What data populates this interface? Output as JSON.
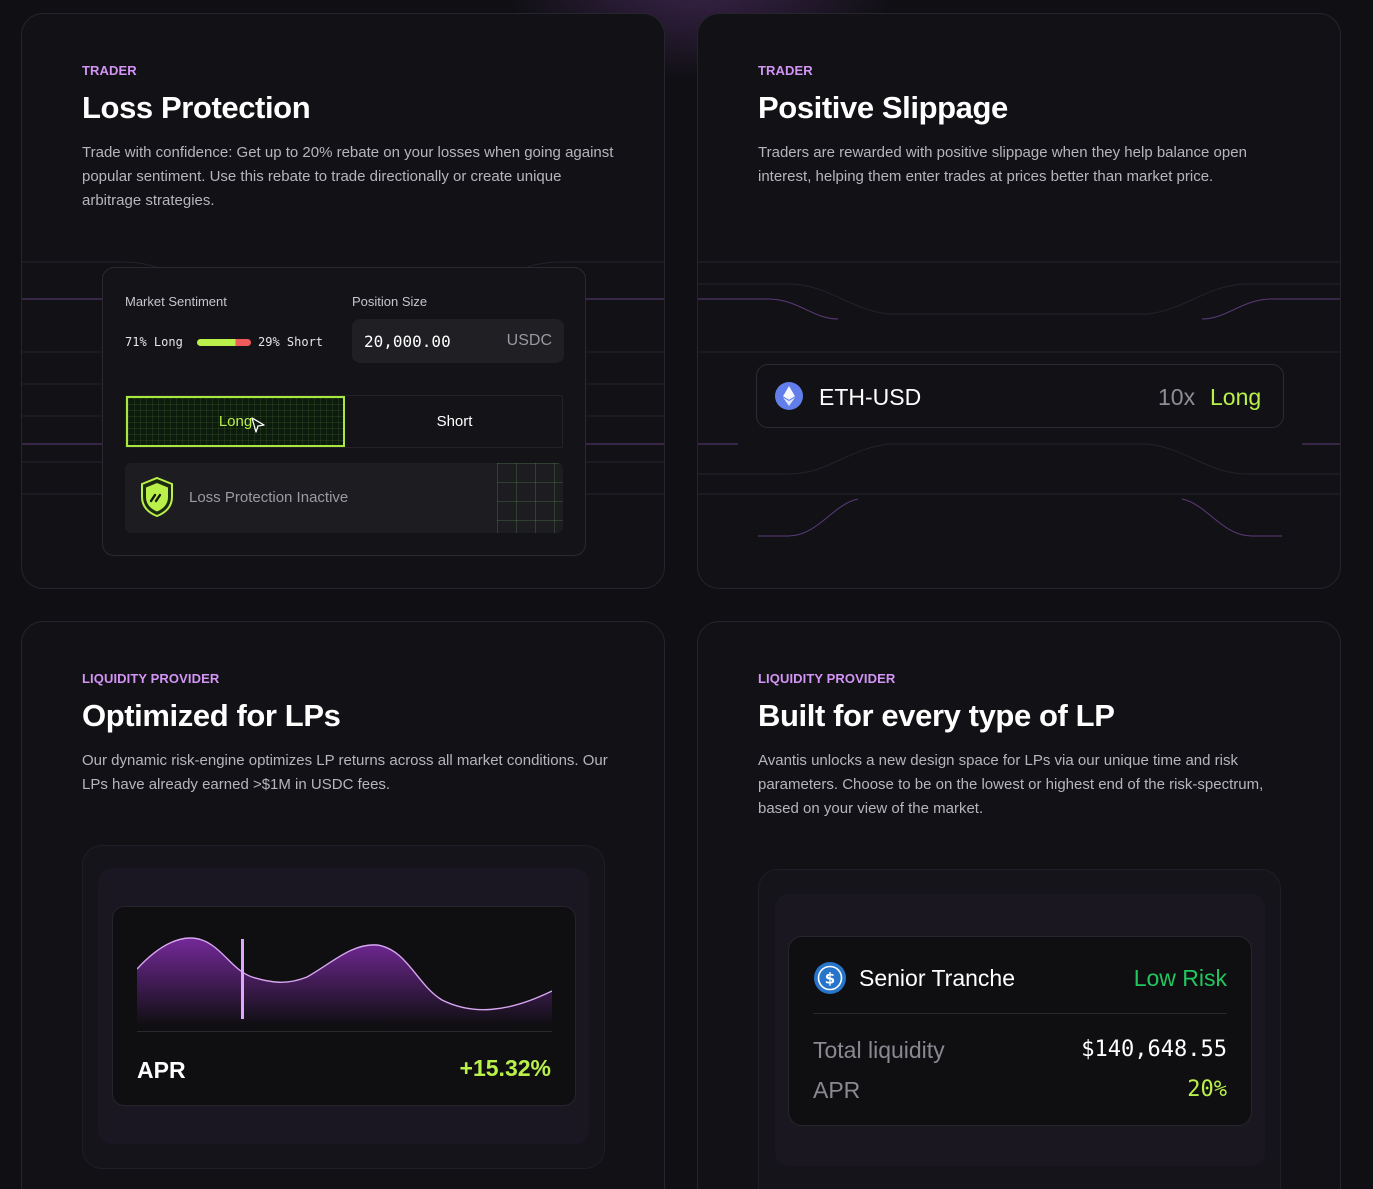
{
  "colors": {
    "background": "#101014",
    "eyebrow": "#d394f6",
    "accent_green": "#b9f04a",
    "low_risk_green": "#22c55e",
    "short_red": "#ef5a5a"
  },
  "cards": [
    {
      "eyebrow": "TRADER",
      "title": "Loss Protection",
      "description": "Trade with confidence: Get up to 20% rebate on your losses when going against popular sentiment. Use this rebate to trade directionally or create unique arbitrage strategies.",
      "widget": {
        "sentiment_label": "Market Sentiment",
        "sentiment_long": "71% Long",
        "sentiment_short": "29% Short",
        "sentiment_long_fraction": 0.71,
        "position_label": "Position Size",
        "position_value": "20,000.00",
        "position_unit": "USDC",
        "long_button": "Long",
        "short_button": "Short",
        "protection_status": "Loss Protection Inactive",
        "icons": [
          "shield-icon",
          "cursor-icon"
        ]
      }
    },
    {
      "eyebrow": "TRADER",
      "title": "Positive Slippage",
      "description": "Traders are rewarded with positive slippage when they help balance open interest, helping them enter trades at prices better than market price.",
      "widget": {
        "pair": "ETH-USD",
        "leverage": "10x",
        "side": "Long",
        "icons": [
          "eth-icon"
        ]
      }
    },
    {
      "eyebrow": "LIQUIDITY PROVIDER",
      "title": "Optimized for LPs",
      "description": "Our dynamic risk-engine optimizes LP returns across all market conditions. Our LPs have already earned >$1M in USDC fees.",
      "widget": {
        "apr_label": "APR",
        "apr_value": "+15.32%"
      }
    },
    {
      "eyebrow": "LIQUIDITY PROVIDER",
      "title": "Built for every type of LP",
      "description": "Avantis unlocks a new design space for LPs via our unique time and risk parameters. Choose to be on the lowest or highest end of the risk-spectrum, based on your view of the market.",
      "widget": {
        "tranche_name": "Senior Tranche",
        "risk": "Low Risk",
        "liquidity_label": "Total liquidity",
        "liquidity_value": "$140,648.55",
        "apr_label": "APR",
        "apr_value": "20%",
        "icons": [
          "usdc-icon"
        ]
      }
    }
  ]
}
